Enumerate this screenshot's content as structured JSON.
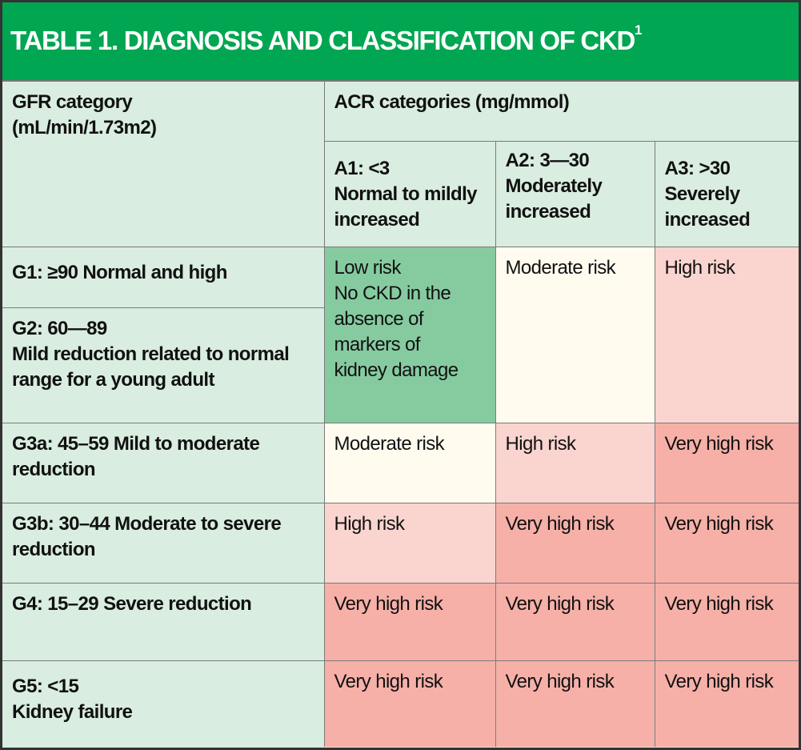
{
  "title": {
    "text": "TABLE 1. DIAGNOSIS AND CLASSIFICATION OF CKD",
    "superscript": "1"
  },
  "header": {
    "gfr": [
      "GFR category",
      "(mL/min/1.73m2)"
    ],
    "acr": "ACR categories (mg/mmol)",
    "a1": [
      "A1: <3",
      "Normal to mildly",
      "increased"
    ],
    "a2": [
      "A2: 3—30",
      "Moderately",
      "increased"
    ],
    "a3": [
      "A3: >30",
      "Severely",
      "increased"
    ]
  },
  "rows": [
    {
      "gfr": [
        "G1: ≥90 Normal and high"
      ]
    },
    {
      "gfr": [
        "G2: 60—89",
        "Mild reduction related to normal",
        "range for a young adult"
      ]
    },
    {
      "gfr": [
        "G3a: 45–59 Mild to moderate",
        "reduction"
      ],
      "a1": "Moderate risk",
      "a2": "High risk",
      "a3": "Very high risk"
    },
    {
      "gfr": [
        "G3b: 30–44 Moderate to severe",
        "reduction"
      ],
      "a1": "High risk",
      "a2": "Very high risk",
      "a3": "Very high risk"
    },
    {
      "gfr": [
        "G4: 15–29 Severe reduction"
      ],
      "a1": "Very high risk",
      "a2": "Very high risk",
      "a3": "Very high risk"
    },
    {
      "gfr": [
        "G5: <15",
        "Kidney failure"
      ],
      "a1": "Very high risk",
      "a2": "Very high risk",
      "a3": "Very high risk"
    }
  ],
  "g1g2": {
    "a1": [
      "Low risk",
      "No CKD in the",
      "absence of",
      "markers of",
      "kidney damage"
    ],
    "a2": "Moderate risk",
    "a3": "High risk"
  },
  "colors": {
    "title_bg": "#00a651",
    "header_bg": "#d9ede0",
    "low": "#86cba0",
    "moderate": "#fffbef",
    "high": "#fad4cf",
    "very_high": "#f6b0a8"
  }
}
